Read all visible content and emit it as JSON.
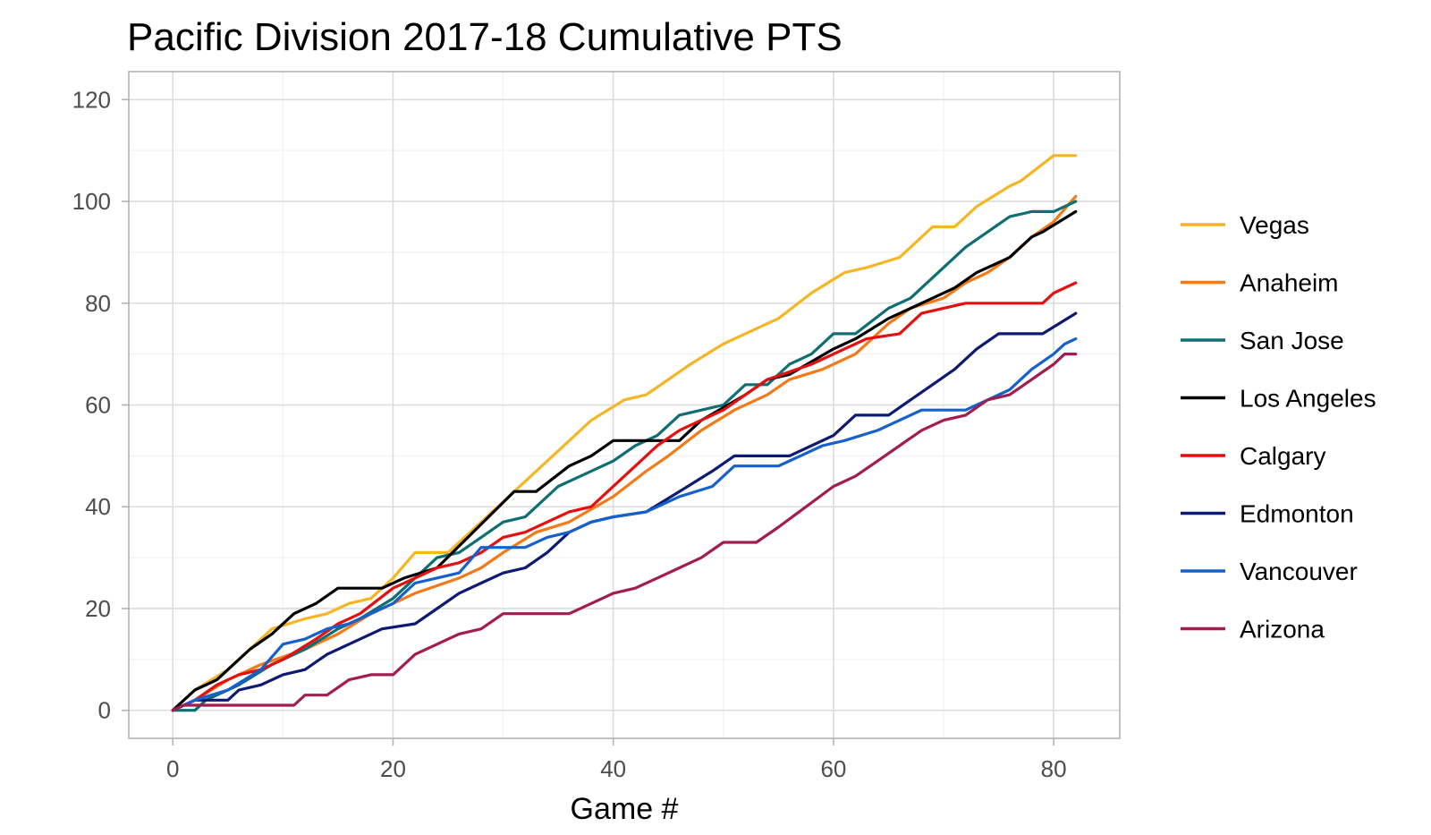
{
  "chart_data": {
    "type": "line",
    "title": "Pacific Division 2017-18 Cumulative PTS",
    "xlabel": "Game #",
    "ylabel": "",
    "xlim": [
      -4,
      86
    ],
    "ylim": [
      -5.5,
      125.5
    ],
    "x_ticks": [
      0,
      20,
      40,
      60,
      80
    ],
    "x_tick_labels": [
      "0",
      "20",
      "40",
      "60",
      "80"
    ],
    "y_ticks": [
      0,
      20,
      40,
      60,
      80,
      100,
      120
    ],
    "y_tick_labels": [
      "0",
      "20",
      "40",
      "60",
      "80",
      "100",
      "120"
    ],
    "grid": true,
    "legend_position": "right",
    "series": [
      {
        "name": "Vegas",
        "color": "#F5B625",
        "points": [
          [
            0,
            0
          ],
          [
            2,
            4
          ],
          [
            5,
            8
          ],
          [
            9,
            16
          ],
          [
            12,
            18
          ],
          [
            14,
            19
          ],
          [
            16,
            21
          ],
          [
            18,
            22
          ],
          [
            20,
            26
          ],
          [
            22,
            31
          ],
          [
            25,
            31
          ],
          [
            30,
            41
          ],
          [
            38,
            57
          ],
          [
            41,
            61
          ],
          [
            43,
            62
          ],
          [
            47,
            68
          ],
          [
            50,
            72
          ],
          [
            55,
            77
          ],
          [
            58,
            82
          ],
          [
            61,
            86
          ],
          [
            63,
            87
          ],
          [
            66,
            89
          ],
          [
            69,
            95
          ],
          [
            71,
            95
          ],
          [
            73,
            99
          ],
          [
            76,
            103
          ],
          [
            77,
            104
          ],
          [
            80,
            109
          ],
          [
            82,
            109
          ]
        ]
      },
      {
        "name": "Anaheim",
        "color": "#F47A18",
        "points": [
          [
            0,
            0
          ],
          [
            2,
            2
          ],
          [
            5,
            6
          ],
          [
            8,
            9
          ],
          [
            12,
            12
          ],
          [
            15,
            15
          ],
          [
            18,
            19
          ],
          [
            22,
            23
          ],
          [
            26,
            26
          ],
          [
            28,
            28
          ],
          [
            30,
            31
          ],
          [
            33,
            35
          ],
          [
            36,
            37
          ],
          [
            40,
            42
          ],
          [
            43,
            47
          ],
          [
            45,
            50
          ],
          [
            48,
            55
          ],
          [
            51,
            59
          ],
          [
            54,
            62
          ],
          [
            56,
            65
          ],
          [
            59,
            67
          ],
          [
            62,
            70
          ],
          [
            65,
            76
          ],
          [
            67,
            79
          ],
          [
            70,
            81
          ],
          [
            72,
            84
          ],
          [
            74,
            86
          ],
          [
            76,
            89
          ],
          [
            78,
            93
          ],
          [
            80,
            96
          ],
          [
            82,
            101
          ]
        ]
      },
      {
        "name": "San Jose",
        "color": "#0E6E72",
        "points": [
          [
            0,
            0
          ],
          [
            2,
            0
          ],
          [
            3,
            2
          ],
          [
            6,
            5
          ],
          [
            9,
            9
          ],
          [
            12,
            12
          ],
          [
            15,
            16
          ],
          [
            17,
            18
          ],
          [
            20,
            22
          ],
          [
            24,
            30
          ],
          [
            26,
            31
          ],
          [
            28,
            34
          ],
          [
            30,
            37
          ],
          [
            32,
            38
          ],
          [
            35,
            44
          ],
          [
            38,
            47
          ],
          [
            40,
            49
          ],
          [
            42,
            52
          ],
          [
            44,
            54
          ],
          [
            46,
            58
          ],
          [
            48,
            59
          ],
          [
            50,
            60
          ],
          [
            52,
            64
          ],
          [
            54,
            64
          ],
          [
            56,
            68
          ],
          [
            58,
            70
          ],
          [
            60,
            74
          ],
          [
            62,
            74
          ],
          [
            65,
            79
          ],
          [
            67,
            81
          ],
          [
            72,
            91
          ],
          [
            76,
            97
          ],
          [
            78,
            98
          ],
          [
            80,
            98
          ],
          [
            82,
            100
          ]
        ]
      },
      {
        "name": "Los Angeles",
        "color": "#000000",
        "points": [
          [
            0,
            0
          ],
          [
            2,
            4
          ],
          [
            4,
            6
          ],
          [
            7,
            12
          ],
          [
            9,
            15
          ],
          [
            11,
            19
          ],
          [
            13,
            21
          ],
          [
            15,
            24
          ],
          [
            19,
            24
          ],
          [
            21,
            26
          ],
          [
            24,
            28
          ],
          [
            31,
            43
          ],
          [
            33,
            43
          ],
          [
            36,
            48
          ],
          [
            38,
            50
          ],
          [
            40,
            53
          ],
          [
            46,
            53
          ],
          [
            48,
            57
          ],
          [
            52,
            62
          ],
          [
            54,
            65
          ],
          [
            56,
            66
          ],
          [
            60,
            71
          ],
          [
            62,
            73
          ],
          [
            65,
            77
          ],
          [
            68,
            80
          ],
          [
            71,
            83
          ],
          [
            73,
            86
          ],
          [
            75,
            88
          ],
          [
            76,
            89
          ],
          [
            78,
            93
          ],
          [
            79,
            94
          ],
          [
            82,
            98
          ]
        ]
      },
      {
        "name": "Calgary",
        "color": "#E60F10",
        "points": [
          [
            0,
            0
          ],
          [
            2,
            2
          ],
          [
            4,
            5
          ],
          [
            6,
            7
          ],
          [
            8,
            8
          ],
          [
            10,
            10
          ],
          [
            13,
            14
          ],
          [
            15,
            17
          ],
          [
            17,
            19
          ],
          [
            20,
            24
          ],
          [
            22,
            26
          ],
          [
            24,
            28
          ],
          [
            26,
            29
          ],
          [
            28,
            31
          ],
          [
            30,
            34
          ],
          [
            32,
            35
          ],
          [
            34,
            37
          ],
          [
            36,
            39
          ],
          [
            38,
            40
          ],
          [
            44,
            52
          ],
          [
            46,
            55
          ],
          [
            50,
            59
          ],
          [
            54,
            65
          ],
          [
            58,
            68
          ],
          [
            61,
            71
          ],
          [
            63,
            73
          ],
          [
            66,
            74
          ],
          [
            68,
            78
          ],
          [
            70,
            79
          ],
          [
            72,
            80
          ],
          [
            79,
            80
          ],
          [
            80,
            82
          ],
          [
            82,
            84
          ]
        ]
      },
      {
        "name": "Edmonton",
        "color": "#0D1A73",
        "points": [
          [
            0,
            0
          ],
          [
            2,
            2
          ],
          [
            5,
            2
          ],
          [
            6,
            4
          ],
          [
            8,
            5
          ],
          [
            10,
            7
          ],
          [
            12,
            8
          ],
          [
            14,
            11
          ],
          [
            16,
            13
          ],
          [
            18,
            15
          ],
          [
            19,
            16
          ],
          [
            22,
            17
          ],
          [
            24,
            20
          ],
          [
            26,
            23
          ],
          [
            28,
            25
          ],
          [
            30,
            27
          ],
          [
            32,
            28
          ],
          [
            34,
            31
          ],
          [
            36,
            35
          ],
          [
            38,
            37
          ],
          [
            40,
            38
          ],
          [
            43,
            39
          ],
          [
            46,
            43
          ],
          [
            49,
            47
          ],
          [
            51,
            50
          ],
          [
            56,
            50
          ],
          [
            58,
            52
          ],
          [
            60,
            54
          ],
          [
            62,
            58
          ],
          [
            65,
            58
          ],
          [
            67,
            61
          ],
          [
            69,
            64
          ],
          [
            71,
            67
          ],
          [
            73,
            71
          ],
          [
            75,
            74
          ],
          [
            79,
            74
          ],
          [
            82,
            78
          ]
        ]
      },
      {
        "name": "Vancouver",
        "color": "#1560CC",
        "points": [
          [
            0,
            0
          ],
          [
            2,
            2
          ],
          [
            5,
            4
          ],
          [
            8,
            8
          ],
          [
            10,
            13
          ],
          [
            12,
            14
          ],
          [
            14,
            16
          ],
          [
            16,
            17
          ],
          [
            18,
            19
          ],
          [
            20,
            21
          ],
          [
            22,
            25
          ],
          [
            26,
            27
          ],
          [
            28,
            32
          ],
          [
            32,
            32
          ],
          [
            34,
            34
          ],
          [
            36,
            35
          ],
          [
            38,
            37
          ],
          [
            40,
            38
          ],
          [
            43,
            39
          ],
          [
            46,
            42
          ],
          [
            49,
            44
          ],
          [
            51,
            48
          ],
          [
            55,
            48
          ],
          [
            57,
            50
          ],
          [
            59,
            52
          ],
          [
            61,
            53
          ],
          [
            64,
            55
          ],
          [
            66,
            57
          ],
          [
            68,
            59
          ],
          [
            72,
            59
          ],
          [
            74,
            61
          ],
          [
            76,
            63
          ],
          [
            78,
            67
          ],
          [
            80,
            70
          ],
          [
            81,
            72
          ],
          [
            82,
            73
          ]
        ]
      },
      {
        "name": "Arizona",
        "color": "#A21D4F",
        "points": [
          [
            0,
            0
          ],
          [
            1,
            1
          ],
          [
            11,
            1
          ],
          [
            12,
            3
          ],
          [
            14,
            3
          ],
          [
            16,
            6
          ],
          [
            18,
            7
          ],
          [
            20,
            7
          ],
          [
            22,
            11
          ],
          [
            24,
            13
          ],
          [
            26,
            15
          ],
          [
            28,
            16
          ],
          [
            30,
            19
          ],
          [
            36,
            19
          ],
          [
            38,
            21
          ],
          [
            40,
            23
          ],
          [
            42,
            24
          ],
          [
            44,
            26
          ],
          [
            46,
            28
          ],
          [
            48,
            30
          ],
          [
            50,
            33
          ],
          [
            53,
            33
          ],
          [
            55,
            36
          ],
          [
            60,
            44
          ],
          [
            62,
            46
          ],
          [
            64,
            49
          ],
          [
            66,
            52
          ],
          [
            68,
            55
          ],
          [
            70,
            57
          ],
          [
            72,
            58
          ],
          [
            74,
            61
          ],
          [
            76,
            62
          ],
          [
            78,
            65
          ],
          [
            80,
            68
          ],
          [
            81,
            70
          ],
          [
            82,
            70
          ]
        ]
      }
    ]
  }
}
